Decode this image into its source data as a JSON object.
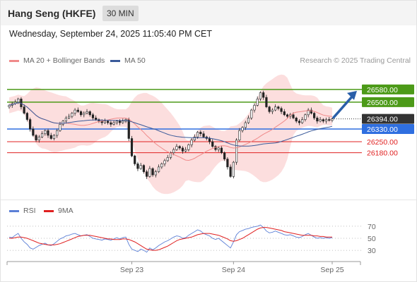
{
  "header": {
    "title": "Hang Seng (HKFE)",
    "interval": "30 MIN"
  },
  "datetime": "Wednesday, September 24, 2025 11:05:40 PM CET",
  "legend": {
    "items": [
      {
        "label": "MA 20 + Bollinger Bands",
        "color": "#f08a8a"
      },
      {
        "label": "MA 50",
        "color": "#3a5a9a"
      }
    ],
    "credit": "Research © 2025 Trading Central"
  },
  "rsi_legend": {
    "items": [
      {
        "label": "RSI",
        "color": "#5b7fd6"
      },
      {
        "label": "9MA",
        "color": "#e02020"
      }
    ]
  },
  "chart_data": [
    {
      "type": "candlestick",
      "y_range": [
        25920,
        26700
      ],
      "x_labels": [
        "Sep 23",
        "Sep 24",
        "Sep 25"
      ],
      "levels": [
        {
          "value": 26580,
          "label": "26580.00",
          "kind": "resistance",
          "color": "#4c9a18"
        },
        {
          "value": 26500,
          "label": "26500.00",
          "kind": "resistance",
          "color": "#4c9a18"
        },
        {
          "value": 26394,
          "label": "26394.00",
          "kind": "current",
          "color": "#333333"
        },
        {
          "value": 26330,
          "label": "26330.00",
          "kind": "pivot",
          "color": "#2f6fe0"
        },
        {
          "value": 26250,
          "label": "26250.00",
          "kind": "support",
          "color": "#e02020"
        },
        {
          "value": 26180,
          "label": "26180.00",
          "kind": "support",
          "color": "#e02020"
        }
      ],
      "closes": [
        26480,
        26490,
        26500,
        26520,
        26470,
        26430,
        26390,
        26330,
        26290,
        26260,
        26280,
        26300,
        26320,
        26290,
        26270,
        26290,
        26320,
        26360,
        26380,
        26400,
        26410,
        26430,
        26450,
        26440,
        26420,
        26430,
        26440,
        26420,
        26400,
        26390,
        26380,
        26370,
        26380,
        26370,
        26360,
        26370,
        26380,
        26370,
        26380,
        26390,
        26270,
        26160,
        26110,
        26080,
        26100,
        26060,
        26030,
        26080,
        26040,
        26060,
        26090,
        26110,
        26130,
        26150,
        26180,
        26200,
        26220,
        26210,
        26190,
        26200,
        26230,
        26260,
        26280,
        26310,
        26300,
        26280,
        26270,
        26250,
        26220,
        26200,
        26210,
        26180,
        26140,
        26090,
        26030,
        26120,
        26260,
        26320,
        26340,
        26370,
        26400,
        26450,
        26480,
        26520,
        26560,
        26530,
        26470,
        26440,
        26450,
        26470,
        26460,
        26440,
        26420,
        26410,
        26420,
        26400,
        26380,
        26370,
        26390,
        26420,
        26450,
        26430,
        26400,
        26380,
        26390,
        26380,
        26390,
        26385,
        26394
      ]
    },
    {
      "type": "line",
      "y_range": [
        15,
        85
      ],
      "y_ticks": [
        70,
        50,
        30
      ],
      "x_labels": [
        "Sep 23",
        "Sep 24",
        "Sep 25"
      ],
      "rsi": [
        52,
        51,
        55,
        58,
        50,
        44,
        40,
        34,
        32,
        35,
        38,
        40,
        42,
        39,
        38,
        41,
        45,
        49,
        51,
        54,
        55,
        57,
        58,
        56,
        54,
        55,
        56,
        53,
        50,
        49,
        48,
        47,
        49,
        48,
        47,
        49,
        51,
        49,
        51,
        52,
        40,
        32,
        30,
        28,
        32,
        30,
        27,
        34,
        31,
        34,
        38,
        41,
        44,
        46,
        49,
        52,
        54,
        53,
        50,
        51,
        55,
        58,
        61,
        64,
        62,
        58,
        56,
        54,
        50,
        48,
        50,
        46,
        42,
        38,
        34,
        44,
        56,
        61,
        63,
        65,
        66,
        68,
        69,
        70,
        72,
        68,
        62,
        59,
        60,
        62,
        60,
        58,
        56,
        55,
        56,
        54,
        52,
        51,
        53,
        56,
        58,
        55,
        52,
        50,
        51,
        50,
        51,
        50,
        51
      ],
      "ma9": [
        50,
        50,
        51,
        52,
        52,
        51,
        50,
        48,
        46,
        44,
        42,
        41,
        40,
        39,
        39,
        39,
        40,
        41,
        43,
        45,
        47,
        49,
        51,
        53,
        54,
        55,
        55,
        55,
        54,
        53,
        52,
        51,
        50,
        49,
        49,
        48,
        48,
        48,
        49,
        49,
        48,
        46,
        44,
        41,
        38,
        35,
        32,
        31,
        30,
        30,
        31,
        33,
        35,
        37,
        40,
        43,
        46,
        48,
        49,
        50,
        51,
        52,
        54,
        56,
        57,
        58,
        58,
        58,
        57,
        56,
        55,
        53,
        51,
        49,
        46,
        45,
        46,
        48,
        50,
        53,
        56,
        59,
        62,
        65,
        67,
        68,
        68,
        67,
        66,
        65,
        64,
        63,
        61,
        60,
        59,
        58,
        57,
        56,
        55,
        55,
        55,
        55,
        54,
        54,
        53,
        53,
        52,
        52,
        52
      ]
    }
  ]
}
